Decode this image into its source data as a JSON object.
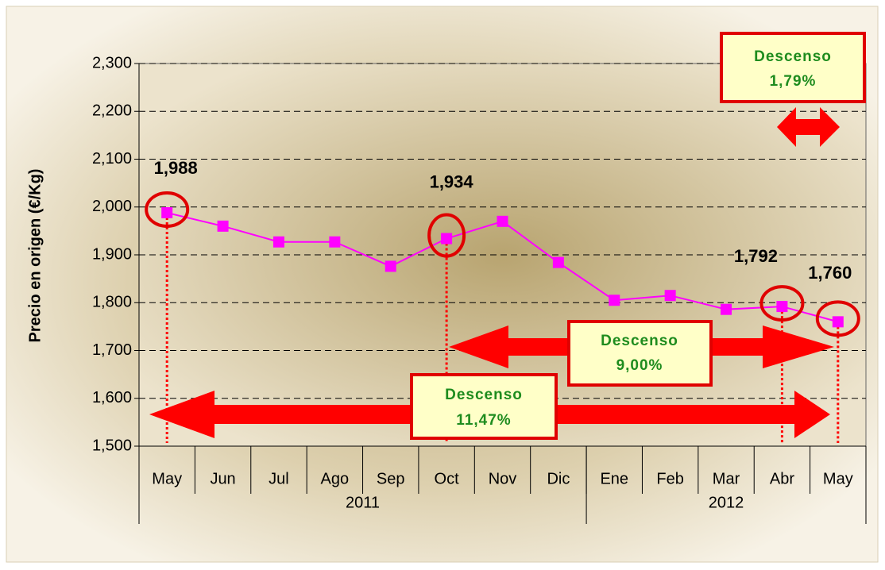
{
  "chart_data": {
    "type": "line",
    "y_label": "Precio en origen (€/Kg)",
    "categories": [
      "May",
      "Jun",
      "Jul",
      "Ago",
      "Sep",
      "Oct",
      "Nov",
      "Dic",
      "Ene",
      "Feb",
      "Mar",
      "Abr",
      "May"
    ],
    "groups": [
      {
        "label": "2011",
        "count": 8
      },
      {
        "label": "2012",
        "count": 5
      }
    ],
    "series": [
      {
        "name": "Precio",
        "color": "#ff00ff",
        "values": [
          1.988,
          1.96,
          1.927,
          1.927,
          1.876,
          1.934,
          1.97,
          1.884,
          1.805,
          1.815,
          1.786,
          1.792,
          1.76
        ],
        "value_labels": [
          "1,988",
          null,
          null,
          null,
          null,
          "1,934",
          null,
          null,
          null,
          null,
          null,
          "1,792",
          "1,760"
        ]
      }
    ],
    "ylim": [
      1.5,
      2.3
    ],
    "yticks": [
      {
        "value": 1.5,
        "label": "1,500"
      },
      {
        "value": 1.6,
        "label": "1,600"
      },
      {
        "value": 1.7,
        "label": "1,700"
      },
      {
        "value": 1.8,
        "label": "1,800"
      },
      {
        "value": 1.9,
        "label": "1,900"
      },
      {
        "value": 2.0,
        "label": "2,000"
      },
      {
        "value": 2.1,
        "label": "2,100"
      },
      {
        "value": 2.2,
        "label": "2,200"
      },
      {
        "value": 2.3,
        "label": "2,300"
      }
    ],
    "grid": true,
    "annotations": [
      {
        "title": "Descenso",
        "value": "1,79%"
      },
      {
        "title": "Descenso",
        "value": "9,00%"
      },
      {
        "title": "Descenso",
        "value": "11,47%"
      }
    ]
  }
}
